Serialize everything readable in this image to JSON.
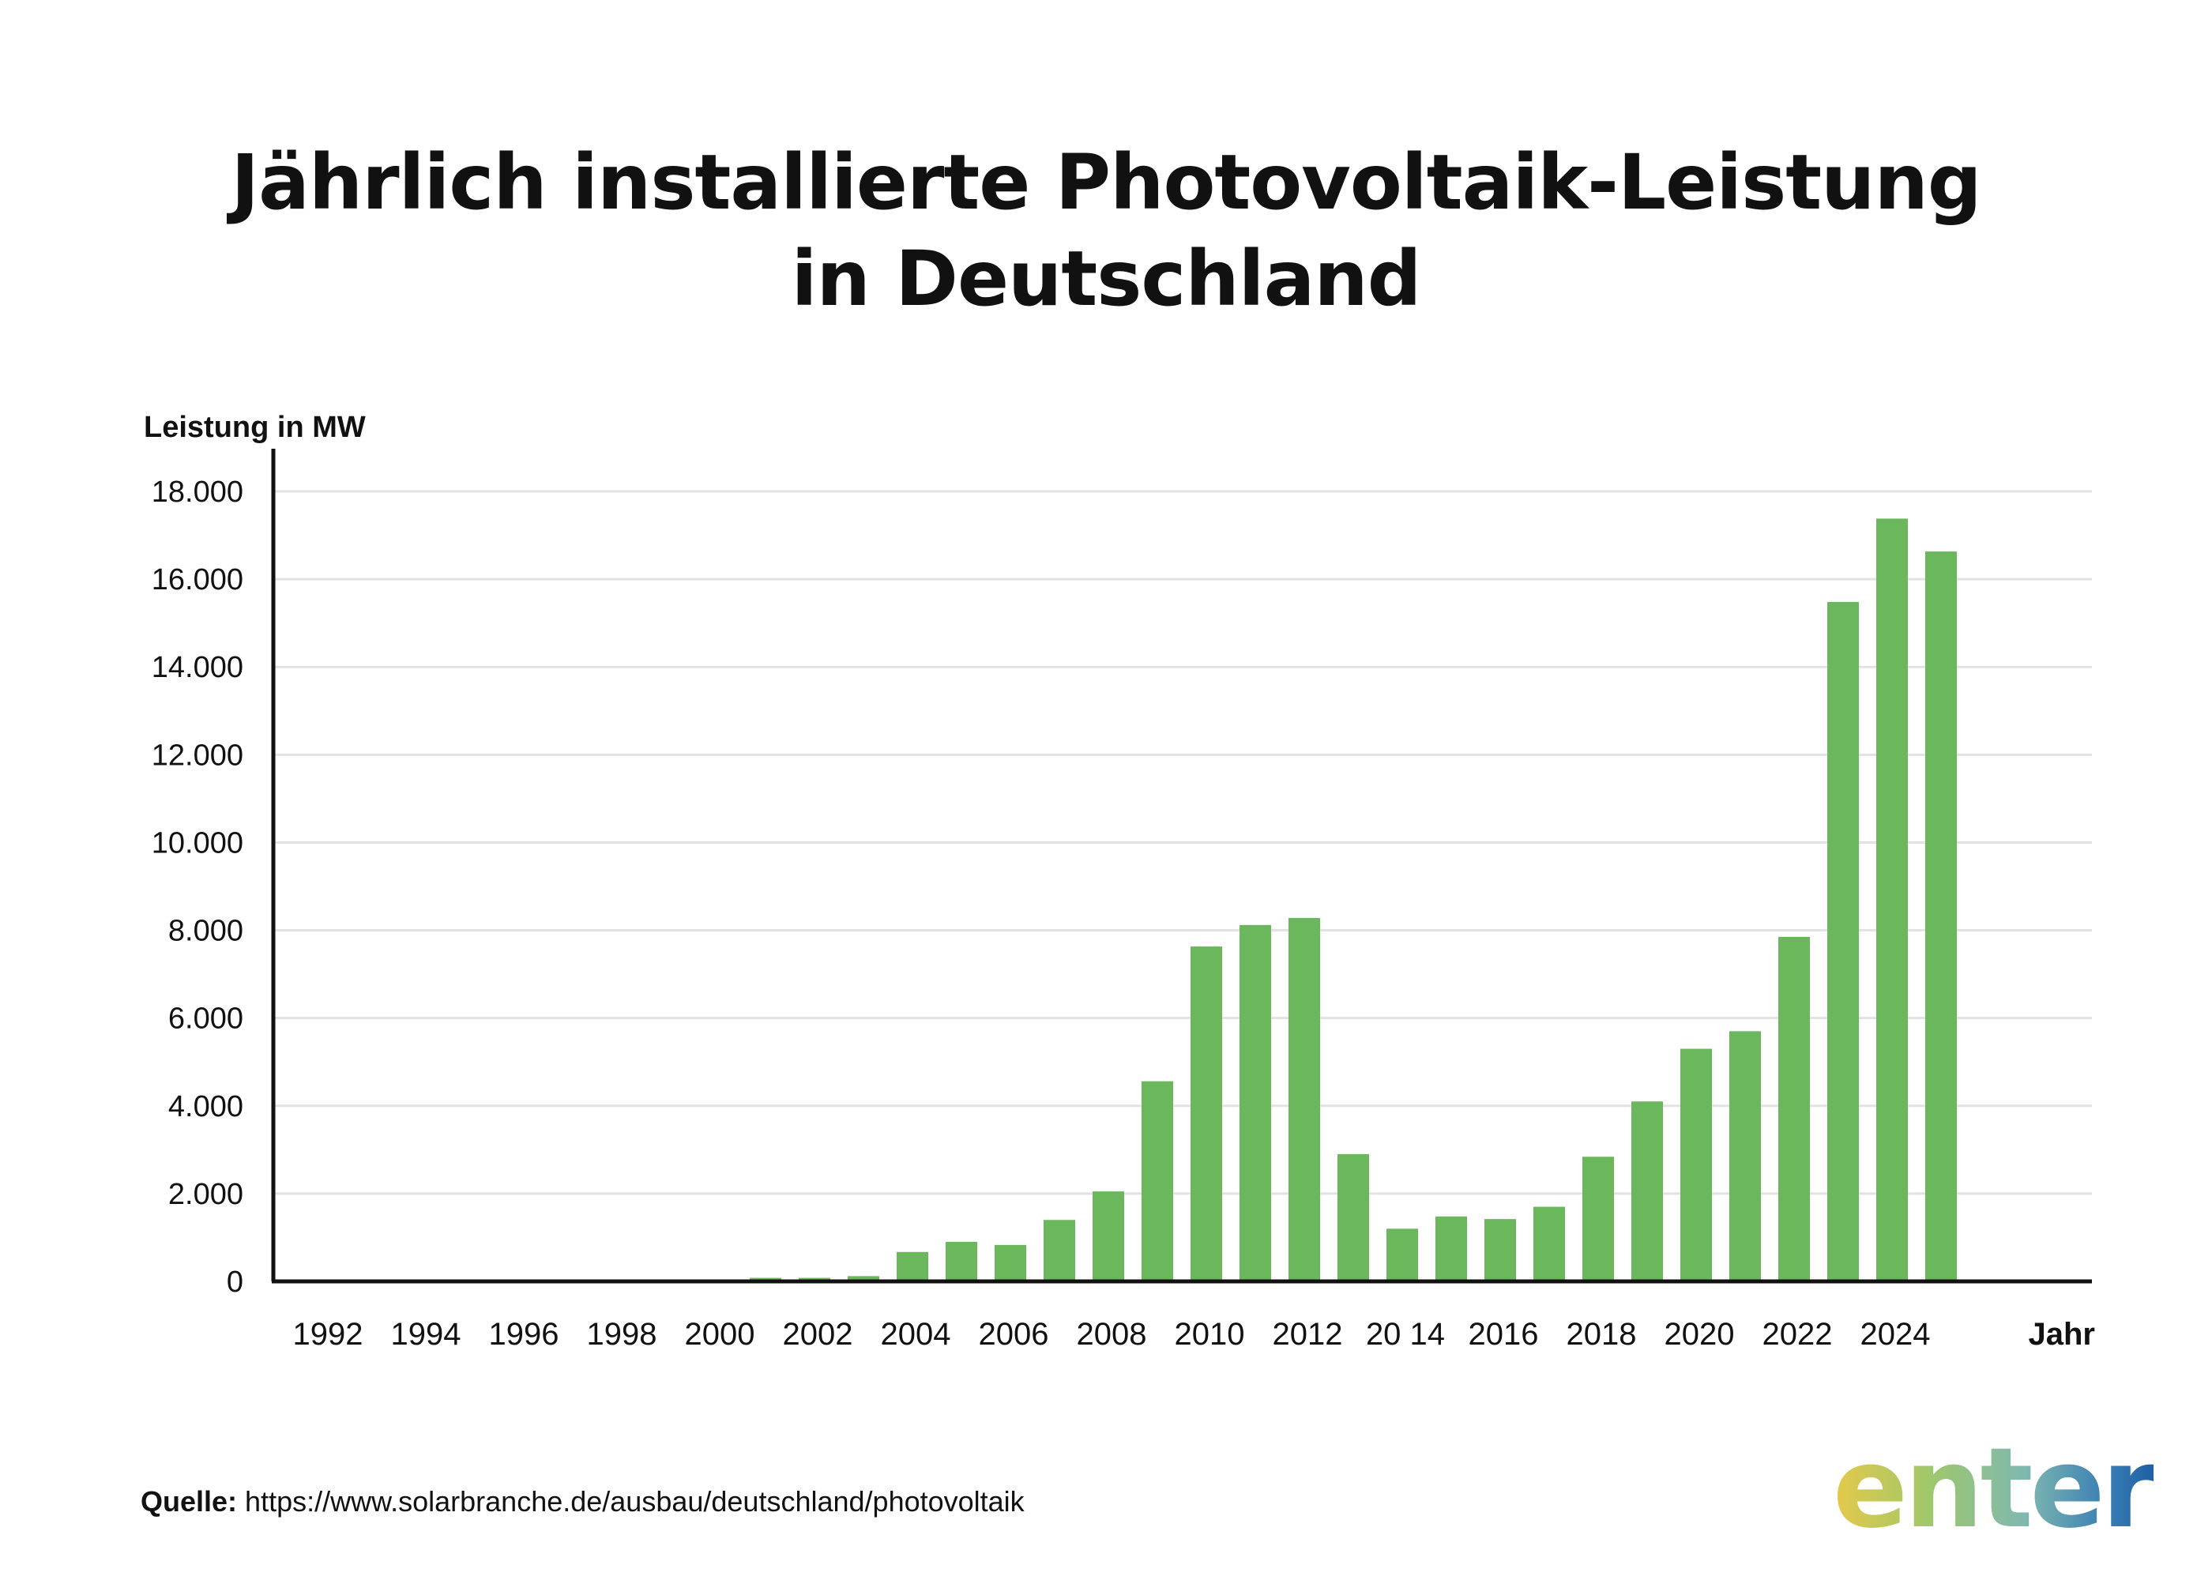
{
  "title_line1": "Jährlich installierte Photovoltaik-Leistung",
  "title_line2": "in Deutschland",
  "source_label": "Quelle:",
  "source_url": "https://www.solarbranche.de/ausbau/deutschland/photovoltaik",
  "logo_text": "enter",
  "chart_data": {
    "type": "bar",
    "ylabel": "Leistung in MW",
    "xlabel": "Jahr",
    "ylim": [
      0,
      18000
    ],
    "yticks": [
      0,
      2000,
      4000,
      6000,
      8000,
      10000,
      12000,
      14000,
      16000,
      18000
    ],
    "ytick_labels": [
      "0",
      "2.000",
      "4.000",
      "6.000",
      "8.000",
      "10.000",
      "12.000",
      "14.000",
      "16.000",
      "18.000"
    ],
    "grid": true,
    "bar_color": "#6bb85c",
    "categories": [
      "1992",
      "1993",
      "1994",
      "1995",
      "1996",
      "1997",
      "1998",
      "1999",
      "2000",
      "2001",
      "2002",
      "2003",
      "2004",
      "2005",
      "2006",
      "2007",
      "2008",
      "2009",
      "2010",
      "2011",
      "2012",
      "2013",
      "2014",
      "2015",
      "2016",
      "2017",
      "2018",
      "2019",
      "2020",
      "2021",
      "2022",
      "2023",
      "2024",
      "2025"
    ],
    "values": [
      5,
      5,
      5,
      5,
      5,
      5,
      5,
      5,
      40,
      80,
      80,
      120,
      670,
      900,
      830,
      1400,
      2050,
      4560,
      7630,
      8120,
      8280,
      2900,
      1200,
      1480,
      1420,
      1700,
      2840,
      4100,
      5300,
      5700,
      7850,
      15480,
      17380,
      16630
    ],
    "xtick_labels": [
      {
        "label": "1992",
        "year": 1992
      },
      {
        "label": "1994",
        "year": 1994
      },
      {
        "label": "1996",
        "year": 1996
      },
      {
        "label": "1998",
        "year": 1998
      },
      {
        "label": "2000",
        "year": 2000
      },
      {
        "label": "2002",
        "year": 2002
      },
      {
        "label": "2004",
        "year": 2004
      },
      {
        "label": "2006",
        "year": 2006
      },
      {
        "label": "2008",
        "year": 2008
      },
      {
        "label": "2010",
        "year": 2010
      },
      {
        "label": "2012",
        "year": 2012
      },
      {
        "label": "20 14",
        "year": 2014
      },
      {
        "label": "2016",
        "year": 2016
      },
      {
        "label": "2018",
        "year": 2018
      },
      {
        "label": "2020",
        "year": 2020
      },
      {
        "label": "2022",
        "year": 2022
      },
      {
        "label": "2024",
        "year": 2024
      }
    ]
  }
}
